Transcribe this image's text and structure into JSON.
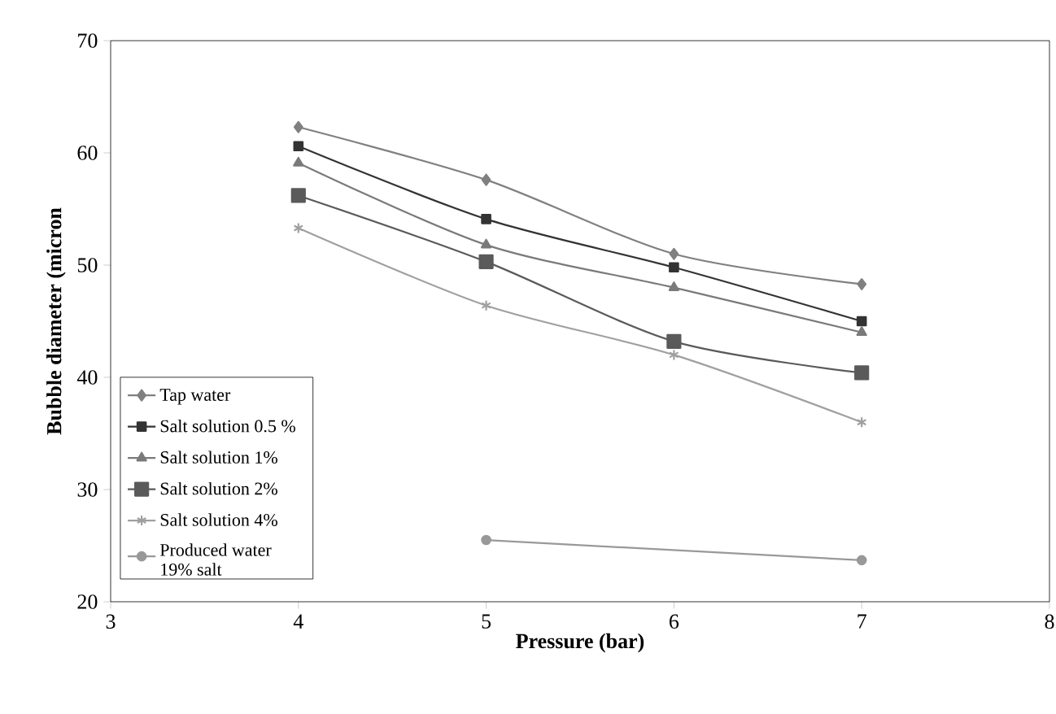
{
  "chart_data": {
    "type": "line",
    "xlabel": "Pressure (bar)",
    "ylabel": "Bubble diameter (micron",
    "x": [
      4,
      5,
      6,
      7
    ],
    "xlim": [
      3,
      8
    ],
    "xticks": [
      3,
      4,
      5,
      6,
      7,
      8
    ],
    "ylim": [
      20,
      70
    ],
    "yticks": [
      20,
      30,
      40,
      50,
      60,
      70
    ],
    "grid": false,
    "legend": "bottom left",
    "line_style": "solid",
    "series": [
      {
        "name": "Tap water",
        "color": "#808080",
        "marker": "diamond",
        "values": [
          62.3,
          57.6,
          51.0,
          48.3
        ]
      },
      {
        "name": "Salt solution 0.5 %",
        "color": "#333333",
        "marker": "square",
        "values": [
          60.6,
          54.1,
          49.8,
          45.0
        ]
      },
      {
        "name": "Salt solution 1%",
        "color": "#7a7a7a",
        "marker": "triangle",
        "values": [
          59.1,
          51.8,
          48.0,
          44.0
        ]
      },
      {
        "name": "Salt solution 2%",
        "color": "#5a5a5a",
        "marker": "square",
        "values": [
          56.2,
          50.3,
          43.2,
          40.4
        ]
      },
      {
        "name": "Salt solution 4%",
        "color": "#a0a0a0",
        "marker": "cross",
        "values": [
          53.3,
          46.4,
          42.0,
          36.0
        ]
      },
      {
        "name": "Produced water 19% salt",
        "color": "#999999",
        "marker": "circle",
        "x": [
          5,
          7
        ],
        "values": [
          25.5,
          23.7
        ]
      }
    ]
  }
}
